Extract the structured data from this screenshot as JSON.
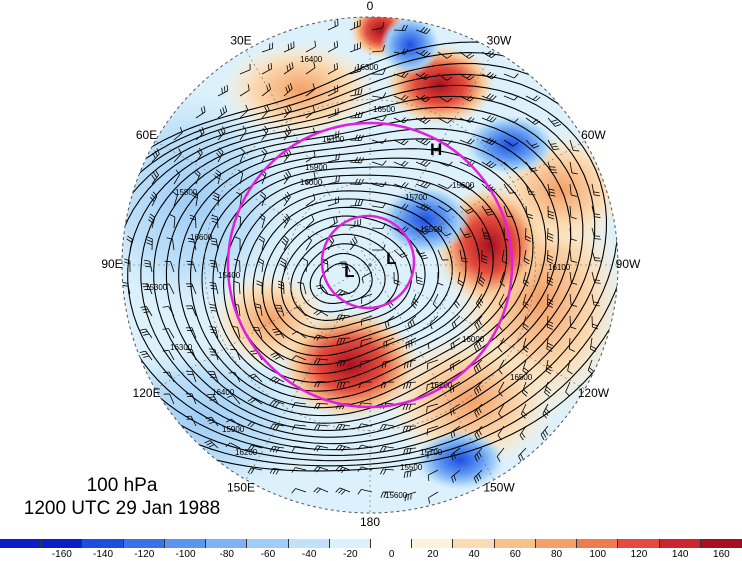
{
  "map": {
    "level": "100 hPa",
    "time": "1200 UTC 29 Jan 1988",
    "longitude_labels": [
      {
        "text": "0",
        "lon": 0
      },
      {
        "text": "30W",
        "lon": -30
      },
      {
        "text": "60W",
        "lon": -60
      },
      {
        "text": "90W",
        "lon": -90
      },
      {
        "text": "120W",
        "lon": -120
      },
      {
        "text": "150W",
        "lon": -150
      },
      {
        "text": "180",
        "lon": 180
      },
      {
        "text": "150E",
        "lon": 150
      },
      {
        "text": "120E",
        "lon": 120
      },
      {
        "text": "90E",
        "lon": 90
      },
      {
        "text": "60E",
        "lon": 60
      },
      {
        "text": "30E",
        "lon": 30
      }
    ],
    "contour_labels": [
      "16300",
      "16400",
      "16500",
      "16100",
      "15900",
      "15700",
      "15500",
      "15600",
      "16000",
      "16200",
      "15800",
      "16600",
      "15300",
      "15400"
    ],
    "centers": [
      {
        "text": "H",
        "lon": -30,
        "lat": 42
      },
      {
        "text": "L",
        "lon": -75,
        "lat": 82
      },
      {
        "text": "L",
        "lon": 110,
        "lat": 82
      }
    ],
    "colors": {
      "contour": "#000000",
      "circle": "#e020e0",
      "background": "#ffffff"
    }
  },
  "colorbar": {
    "ticks": [
      "-160",
      "-140",
      "-120",
      "-100",
      "-80",
      "-60",
      "-40",
      "-20",
      "0",
      "20",
      "40",
      "60",
      "80",
      "100",
      "120",
      "140",
      "160"
    ],
    "colors": [
      "#0a1fc8",
      "#1e4ee0",
      "#3a72ee",
      "#5b95f2",
      "#7db3f5",
      "#9fcdf7",
      "#bfe1f9",
      "#dcf1fb",
      "#ffffff",
      "#fdf2dc",
      "#fbdcb4",
      "#f8c08a",
      "#f4a068",
      "#ef7b52",
      "#e44b3c",
      "#cc2430",
      "#a81020"
    ]
  }
}
